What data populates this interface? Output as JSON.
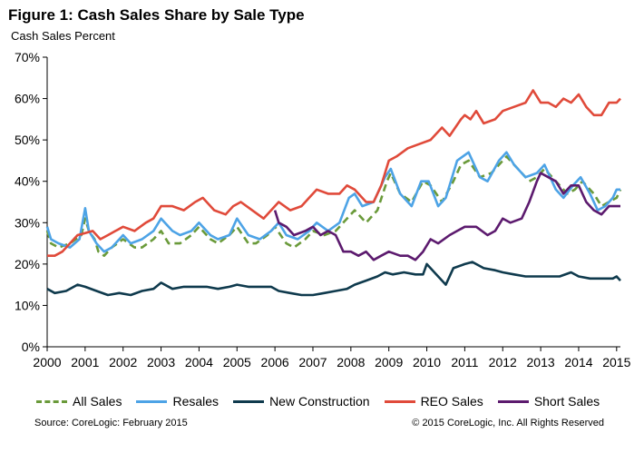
{
  "header": {
    "title": "Figure 1: Cash Sales Share by Sale Type",
    "subtitle": "Cash Sales Percent"
  },
  "footer": {
    "source": "Source: CoreLogic: February 2015",
    "copyright": "© 2015 CoreLogic, Inc. All Rights Reserved"
  },
  "chart_data": {
    "type": "line",
    "title": "Figure 1: Cash Sales Share by Sale Type",
    "ylabel": "Cash Sales Percent",
    "xlim": [
      2000,
      2015.1
    ],
    "ylim": [
      0,
      70
    ],
    "y_ticks": [
      0,
      10,
      20,
      30,
      40,
      50,
      60,
      70
    ],
    "y_tick_labels": [
      "0%",
      "10%",
      "20%",
      "30%",
      "40%",
      "50%",
      "60%",
      "70%"
    ],
    "x_ticks": [
      2000,
      2001,
      2002,
      2003,
      2004,
      2005,
      2006,
      2007,
      2008,
      2009,
      2010,
      2011,
      2012,
      2013,
      2014,
      2015
    ],
    "x_tick_labels": [
      "2000",
      "2001",
      "2002",
      "2003",
      "2004",
      "2005",
      "2006",
      "2007",
      "2008",
      "2009",
      "2010",
      "2011",
      "2012",
      "2013",
      "2014",
      "2015"
    ],
    "grid": false,
    "legend_position": "bottom",
    "series": [
      {
        "name": "All Sales",
        "color": "#6a9a3a",
        "style": "dashed",
        "points": [
          [
            2000.0,
            28
          ],
          [
            2000.1,
            25
          ],
          [
            2000.3,
            24
          ],
          [
            2000.6,
            25
          ],
          [
            2000.9,
            27
          ],
          [
            2001.0,
            31
          ],
          [
            2001.1,
            28
          ],
          [
            2001.25,
            26
          ],
          [
            2001.35,
            23
          ],
          [
            2001.5,
            22
          ],
          [
            2001.7,
            24
          ],
          [
            2002.0,
            26
          ],
          [
            2002.3,
            24
          ],
          [
            2002.5,
            24
          ],
          [
            2002.8,
            26
          ],
          [
            2003.0,
            28
          ],
          [
            2003.2,
            25
          ],
          [
            2003.5,
            25
          ],
          [
            2003.8,
            27
          ],
          [
            2004.0,
            29
          ],
          [
            2004.3,
            26
          ],
          [
            2004.5,
            25
          ],
          [
            2004.8,
            27
          ],
          [
            2005.0,
            29
          ],
          [
            2005.3,
            25
          ],
          [
            2005.5,
            25
          ],
          [
            2005.8,
            27
          ],
          [
            2006.0,
            29
          ],
          [
            2006.3,
            25
          ],
          [
            2006.5,
            24
          ],
          [
            2006.8,
            26
          ],
          [
            2007.0,
            28
          ],
          [
            2007.3,
            27
          ],
          [
            2007.6,
            28
          ],
          [
            2007.9,
            31
          ],
          [
            2008.1,
            33
          ],
          [
            2008.4,
            30
          ],
          [
            2008.7,
            33
          ],
          [
            2008.95,
            40
          ],
          [
            2009.05,
            42
          ],
          [
            2009.3,
            37
          ],
          [
            2009.6,
            35
          ],
          [
            2009.9,
            40
          ],
          [
            2010.1,
            39
          ],
          [
            2010.4,
            35
          ],
          [
            2010.7,
            40
          ],
          [
            2010.9,
            44
          ],
          [
            2011.1,
            45
          ],
          [
            2011.4,
            41
          ],
          [
            2011.7,
            42
          ],
          [
            2011.9,
            44
          ],
          [
            2012.1,
            46
          ],
          [
            2012.4,
            43
          ],
          [
            2012.7,
            40
          ],
          [
            2012.9,
            41
          ],
          [
            2013.1,
            43
          ],
          [
            2013.4,
            40
          ],
          [
            2013.7,
            37
          ],
          [
            2013.9,
            38
          ],
          [
            2014.1,
            40
          ],
          [
            2014.4,
            37
          ],
          [
            2014.6,
            34
          ],
          [
            2014.8,
            35
          ],
          [
            2015.0,
            36
          ],
          [
            2015.1,
            38
          ]
        ]
      },
      {
        "name": "Resales",
        "color": "#4da3e6",
        "style": "solid",
        "points": [
          [
            2000.0,
            29
          ],
          [
            2000.1,
            26
          ],
          [
            2000.3,
            25
          ],
          [
            2000.6,
            24
          ],
          [
            2000.85,
            26
          ],
          [
            2001.0,
            33.5
          ],
          [
            2001.1,
            28
          ],
          [
            2001.3,
            25
          ],
          [
            2001.5,
            23
          ],
          [
            2001.7,
            24
          ],
          [
            2002.0,
            27
          ],
          [
            2002.2,
            25
          ],
          [
            2002.5,
            26
          ],
          [
            2002.8,
            28
          ],
          [
            2003.0,
            31
          ],
          [
            2003.3,
            28
          ],
          [
            2003.5,
            27
          ],
          [
            2003.8,
            28
          ],
          [
            2004.0,
            30
          ],
          [
            2004.3,
            27
          ],
          [
            2004.5,
            26
          ],
          [
            2004.8,
            27
          ],
          [
            2005.0,
            31
          ],
          [
            2005.3,
            27
          ],
          [
            2005.6,
            26
          ],
          [
            2005.9,
            28
          ],
          [
            2006.1,
            30
          ],
          [
            2006.3,
            27
          ],
          [
            2006.6,
            26
          ],
          [
            2006.9,
            28
          ],
          [
            2007.1,
            30
          ],
          [
            2007.4,
            28
          ],
          [
            2007.7,
            30
          ],
          [
            2007.95,
            36
          ],
          [
            2008.1,
            37
          ],
          [
            2008.3,
            34
          ],
          [
            2008.6,
            35
          ],
          [
            2008.9,
            41
          ],
          [
            2009.05,
            43
          ],
          [
            2009.3,
            37
          ],
          [
            2009.6,
            34
          ],
          [
            2009.85,
            40
          ],
          [
            2010.05,
            40
          ],
          [
            2010.3,
            34
          ],
          [
            2010.5,
            36
          ],
          [
            2010.8,
            45
          ],
          [
            2011.1,
            47
          ],
          [
            2011.4,
            41
          ],
          [
            2011.6,
            40
          ],
          [
            2011.9,
            45
          ],
          [
            2012.1,
            47
          ],
          [
            2012.3,
            44
          ],
          [
            2012.6,
            41
          ],
          [
            2012.9,
            42
          ],
          [
            2013.1,
            44
          ],
          [
            2013.4,
            38
          ],
          [
            2013.6,
            36
          ],
          [
            2013.85,
            39
          ],
          [
            2014.05,
            41
          ],
          [
            2014.3,
            37
          ],
          [
            2014.5,
            33
          ],
          [
            2014.7,
            34
          ],
          [
            2014.9,
            36
          ],
          [
            2015.0,
            38
          ],
          [
            2015.1,
            38
          ]
        ]
      },
      {
        "name": "New Construction",
        "color": "#0f3a4d",
        "style": "solid",
        "points": [
          [
            2000.0,
            14
          ],
          [
            2000.2,
            13
          ],
          [
            2000.5,
            13.5
          ],
          [
            2000.8,
            15
          ],
          [
            2001.0,
            14.5
          ],
          [
            2001.3,
            13.5
          ],
          [
            2001.6,
            12.5
          ],
          [
            2001.9,
            13
          ],
          [
            2002.2,
            12.5
          ],
          [
            2002.5,
            13.5
          ],
          [
            2002.8,
            14
          ],
          [
            2003.0,
            15.5
          ],
          [
            2003.3,
            14
          ],
          [
            2003.6,
            14.5
          ],
          [
            2003.9,
            14.5
          ],
          [
            2004.2,
            14.5
          ],
          [
            2004.5,
            14
          ],
          [
            2004.8,
            14.5
          ],
          [
            2005.0,
            15
          ],
          [
            2005.3,
            14.5
          ],
          [
            2005.6,
            14.5
          ],
          [
            2005.9,
            14.5
          ],
          [
            2006.1,
            13.5
          ],
          [
            2006.4,
            13
          ],
          [
            2006.7,
            12.5
          ],
          [
            2007.0,
            12.5
          ],
          [
            2007.3,
            13
          ],
          [
            2007.6,
            13.5
          ],
          [
            2007.9,
            14
          ],
          [
            2008.1,
            15
          ],
          [
            2008.4,
            16
          ],
          [
            2008.7,
            17
          ],
          [
            2008.9,
            18
          ],
          [
            2009.1,
            17.5
          ],
          [
            2009.4,
            18
          ],
          [
            2009.7,
            17.5
          ],
          [
            2009.9,
            17.5
          ],
          [
            2010.0,
            20
          ],
          [
            2010.2,
            18
          ],
          [
            2010.5,
            15
          ],
          [
            2010.7,
            19
          ],
          [
            2011.0,
            20
          ],
          [
            2011.2,
            20.5
          ],
          [
            2011.5,
            19
          ],
          [
            2011.8,
            18.5
          ],
          [
            2012.0,
            18
          ],
          [
            2012.3,
            17.5
          ],
          [
            2012.6,
            17
          ],
          [
            2012.9,
            17
          ],
          [
            2013.2,
            17
          ],
          [
            2013.5,
            17
          ],
          [
            2013.8,
            18
          ],
          [
            2014.0,
            17
          ],
          [
            2014.3,
            16.5
          ],
          [
            2014.6,
            16.5
          ],
          [
            2014.9,
            16.5
          ],
          [
            2015.0,
            17
          ],
          [
            2015.1,
            16
          ]
        ]
      },
      {
        "name": "REO Sales",
        "color": "#e04a3a",
        "style": "solid",
        "points": [
          [
            2000.0,
            22
          ],
          [
            2000.2,
            22
          ],
          [
            2000.4,
            23
          ],
          [
            2000.6,
            25
          ],
          [
            2000.8,
            27
          ],
          [
            2001.0,
            27.5
          ],
          [
            2001.2,
            28
          ],
          [
            2001.4,
            26
          ],
          [
            2001.6,
            27
          ],
          [
            2001.8,
            28
          ],
          [
            2002.0,
            29
          ],
          [
            2002.3,
            28
          ],
          [
            2002.6,
            30
          ],
          [
            2002.8,
            31
          ],
          [
            2003.0,
            34
          ],
          [
            2003.3,
            34
          ],
          [
            2003.6,
            33
          ],
          [
            2003.9,
            35
          ],
          [
            2004.1,
            36
          ],
          [
            2004.4,
            33
          ],
          [
            2004.7,
            32
          ],
          [
            2004.9,
            34
          ],
          [
            2005.1,
            35
          ],
          [
            2005.4,
            33
          ],
          [
            2005.7,
            31
          ],
          [
            2005.9,
            33
          ],
          [
            2006.1,
            35
          ],
          [
            2006.4,
            33
          ],
          [
            2006.7,
            34
          ],
          [
            2006.9,
            36
          ],
          [
            2007.1,
            38
          ],
          [
            2007.4,
            37
          ],
          [
            2007.7,
            37
          ],
          [
            2007.9,
            39
          ],
          [
            2008.1,
            38
          ],
          [
            2008.4,
            35
          ],
          [
            2008.6,
            35
          ],
          [
            2008.8,
            39
          ],
          [
            2009.0,
            45
          ],
          [
            2009.2,
            46
          ],
          [
            2009.5,
            48
          ],
          [
            2009.8,
            49
          ],
          [
            2010.1,
            50
          ],
          [
            2010.4,
            53
          ],
          [
            2010.6,
            51
          ],
          [
            2010.9,
            55
          ],
          [
            2011.0,
            56
          ],
          [
            2011.15,
            55
          ],
          [
            2011.3,
            57
          ],
          [
            2011.5,
            54
          ],
          [
            2011.8,
            55
          ],
          [
            2012.0,
            57
          ],
          [
            2012.3,
            58
          ],
          [
            2012.6,
            59
          ],
          [
            2012.8,
            62
          ],
          [
            2013.0,
            59
          ],
          [
            2013.2,
            59
          ],
          [
            2013.4,
            58
          ],
          [
            2013.6,
            60
          ],
          [
            2013.8,
            59
          ],
          [
            2014.0,
            61
          ],
          [
            2014.2,
            58
          ],
          [
            2014.4,
            56
          ],
          [
            2014.6,
            56
          ],
          [
            2014.8,
            59
          ],
          [
            2015.0,
            59
          ],
          [
            2015.1,
            60
          ]
        ]
      },
      {
        "name": "Short Sales",
        "color": "#5c1a6e",
        "style": "solid",
        "points": [
          [
            2006.0,
            33
          ],
          [
            2006.1,
            30
          ],
          [
            2006.3,
            29
          ],
          [
            2006.5,
            27
          ],
          [
            2006.8,
            28
          ],
          [
            2007.0,
            29
          ],
          [
            2007.2,
            27
          ],
          [
            2007.4,
            28
          ],
          [
            2007.6,
            27
          ],
          [
            2007.8,
            23
          ],
          [
            2008.0,
            23
          ],
          [
            2008.2,
            22
          ],
          [
            2008.4,
            23
          ],
          [
            2008.6,
            21
          ],
          [
            2008.8,
            22
          ],
          [
            2009.0,
            23
          ],
          [
            2009.3,
            22
          ],
          [
            2009.5,
            22
          ],
          [
            2009.7,
            21
          ],
          [
            2009.9,
            23
          ],
          [
            2010.1,
            26
          ],
          [
            2010.3,
            25
          ],
          [
            2010.6,
            27
          ],
          [
            2010.8,
            28
          ],
          [
            2011.0,
            29
          ],
          [
            2011.3,
            29
          ],
          [
            2011.6,
            27
          ],
          [
            2011.8,
            28
          ],
          [
            2012.0,
            31
          ],
          [
            2012.2,
            30
          ],
          [
            2012.5,
            31
          ],
          [
            2012.7,
            35
          ],
          [
            2012.9,
            40
          ],
          [
            2013.0,
            42
          ],
          [
            2013.2,
            41
          ],
          [
            2013.4,
            40
          ],
          [
            2013.6,
            37
          ],
          [
            2013.8,
            39
          ],
          [
            2014.0,
            39
          ],
          [
            2014.2,
            35
          ],
          [
            2014.4,
            33
          ],
          [
            2014.6,
            32
          ],
          [
            2014.8,
            34
          ],
          [
            2015.0,
            34
          ],
          [
            2015.1,
            34
          ]
        ]
      }
    ]
  }
}
